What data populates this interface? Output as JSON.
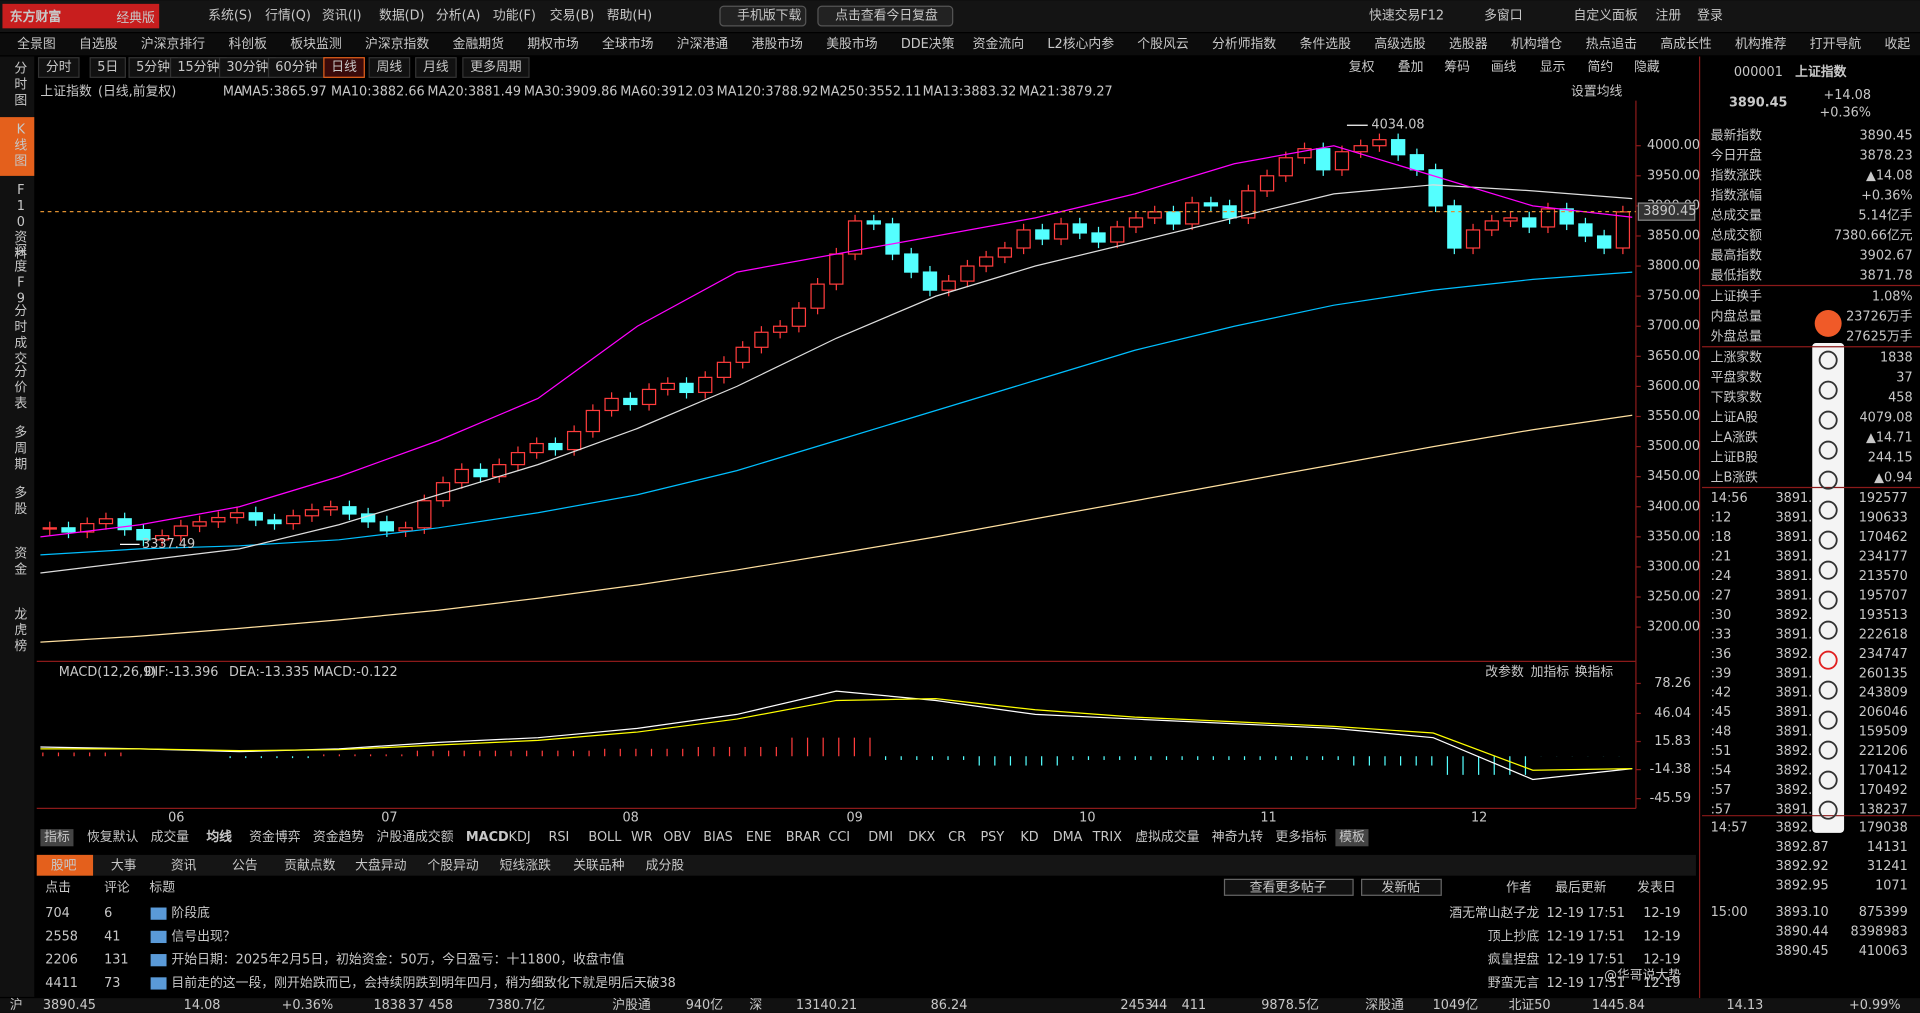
{
  "title_bar": {
    "logo": "东方财富",
    "edition": "经典版",
    "menu": [
      "系统(S)",
      "行情(Q)",
      "资讯(I)",
      "数据(D)",
      "分析(A)",
      "功能(F)",
      "交易(B)",
      "帮助(H)"
    ],
    "buttons": [
      "手机版下载",
      "点击查看今日复盘"
    ],
    "right": [
      "快速交易F12",
      "多窗口",
      "自定义面板",
      "注册",
      "登录"
    ]
  },
  "nav": [
    "全景图",
    "自选股",
    "沪深京排行",
    "科创板",
    "板块监测",
    "沪深京指数",
    "金融期货",
    "期权市场",
    "全球市场",
    "沪深港通",
    "港股市场",
    "美股市场",
    "DDE决策",
    "资金流向",
    "L2核心内参",
    "个股风云",
    "分析师指数",
    "条件选股",
    "高级选股",
    "选股器",
    "机构增仓",
    "热点追击",
    "高成长性",
    "机构推荐",
    "打开导航",
    "收起"
  ],
  "side_tabs": [
    "分时图",
    "K线图",
    "F10资料",
    "深度F9",
    "分时成交",
    "分价表",
    "多周期",
    "多股",
    "资金",
    "龙虎榜"
  ],
  "periods": [
    "分时",
    "5日",
    "5分钟",
    "15分钟",
    "30分钟",
    "60分钟",
    "日线",
    "周线",
    "月线",
    "更多周期"
  ],
  "chart_tools": [
    "复权",
    "叠加",
    "筹码",
    "画线",
    "显示",
    "简约",
    "隐藏"
  ],
  "legend": {
    "name": "上证指数",
    "mode": "(日线,前复权)",
    "ma": "MA",
    "items": [
      {
        "label": "MA5:3865.97",
        "color": "#ffffff"
      },
      {
        "label": "MA10:3882.66",
        "color": "#ffff00"
      },
      {
        "label": "MA20:3881.49",
        "color": "#ff00ff"
      },
      {
        "label": "MA30:3909.86",
        "color": "#00ff00"
      },
      {
        "label": "MA60:3912.03",
        "color": "#dddddd"
      },
      {
        "label": "MA120:3788.92",
        "color": "#00bfff"
      },
      {
        "label": "MA250:3552.11",
        "color": "#ffe0a0"
      },
      {
        "label": "MA13:3883.32",
        "color": "#ff4040"
      },
      {
        "label": "MA21:3879.27",
        "color": "#4080ff"
      }
    ],
    "settings": "设置均线"
  },
  "kline": {
    "type": "candlestick",
    "up_color": "#ff3c3c",
    "down_color": "#54ffff",
    "ylim": [
      3143,
      4075
    ],
    "yticks": [
      {
        "value": 3200,
        "label": "3200.00"
      },
      {
        "value": 3250,
        "label": "3250.00"
      },
      {
        "value": 3300,
        "label": "3300.00"
      },
      {
        "value": 3350,
        "label": "3350.00"
      },
      {
        "value": 3400,
        "label": "3400.00"
      },
      {
        "value": 3450,
        "label": "3450.00"
      },
      {
        "value": 3500,
        "label": "3500.00"
      },
      {
        "value": 3550,
        "label": "3550.00"
      },
      {
        "value": 3600,
        "label": "3600.00"
      },
      {
        "value": 3650,
        "label": "3650.00"
      },
      {
        "value": 3700,
        "label": "3700.00"
      },
      {
        "value": 3750,
        "label": "3750.00"
      },
      {
        "value": 3800,
        "label": "3800.00"
      },
      {
        "value": 3850,
        "label": "3850.00"
      },
      {
        "value": 3900,
        "label": "3900.00"
      },
      {
        "value": 3950,
        "label": "3950.00"
      },
      {
        "value": 4000,
        "label": "4000.00"
      }
    ],
    "closes": [
      3365,
      3358,
      3372,
      3380,
      3362,
      3345,
      3352,
      3368,
      3375,
      3382,
      3390,
      3378,
      3372,
      3385,
      3395,
      3400,
      3388,
      3375,
      3360,
      3365,
      3410,
      3440,
      3462,
      3450,
      3470,
      3490,
      3505,
      3495,
      3525,
      3560,
      3580,
      3570,
      3595,
      3605,
      3590,
      3615,
      3640,
      3665,
      3690,
      3700,
      3730,
      3770,
      3820,
      3875,
      3870,
      3820,
      3790,
      3760,
      3775,
      3800,
      3815,
      3830,
      3860,
      3845,
      3870,
      3855,
      3840,
      3865,
      3880,
      3890,
      3870,
      3905,
      3900,
      3880,
      3925,
      3950,
      3980,
      3995,
      3960,
      3990,
      4000,
      4010,
      3985,
      3960,
      3900,
      3830,
      3860,
      3875,
      3880,
      3865,
      3895,
      3870,
      3850,
      3830,
      3890
    ],
    "ma_lines": [
      {
        "name": "MA250",
        "color": "#ffe0a0",
        "values": [
          3175,
          3185,
          3198,
          3212,
          3228,
          3248,
          3270,
          3295,
          3322,
          3350,
          3380,
          3410,
          3440,
          3470,
          3500,
          3528,
          3552
        ]
      },
      {
        "name": "MA120",
        "color": "#00bfff",
        "values": [
          3320,
          3330,
          3335,
          3345,
          3365,
          3390,
          3420,
          3460,
          3510,
          3560,
          3610,
          3660,
          3700,
          3735,
          3760,
          3778,
          3790
        ]
      },
      {
        "name": "MA60",
        "color": "#dddddd",
        "values": [
          3290,
          3310,
          3330,
          3370,
          3420,
          3470,
          3530,
          3600,
          3680,
          3750,
          3800,
          3840,
          3880,
          3920,
          3935,
          3925,
          3912
        ]
      },
      {
        "name": "MA20",
        "color": "#ff00ff",
        "values": [
          3350,
          3370,
          3400,
          3450,
          3510,
          3580,
          3700,
          3790,
          3820,
          3850,
          3880,
          3920,
          3970,
          4000,
          3950,
          3900,
          3881
        ]
      }
    ],
    "last": {
      "value": 3890.45,
      "label": "3890.45"
    },
    "high": {
      "value": 4034.08,
      "label": "4034.08"
    },
    "low": {
      "value": 3337.49,
      "label": "3337.49"
    },
    "months": [
      "06",
      "07",
      "08",
      "09",
      "10",
      "11",
      "12"
    ]
  },
  "macd": {
    "header": "MACD(12,26,9)",
    "dif_label": "DIF:-13.396",
    "dea_label": "DEA:-13.335",
    "macd_label": "MACD:-0.122",
    "tools": [
      "改参数",
      "加指标",
      "换指标"
    ],
    "ylim": [
      -56,
      98
    ],
    "yticks": [
      -45.59,
      -14.38,
      15.83,
      46.04,
      78.26
    ],
    "dif": [
      10,
      8,
      5,
      8,
      15,
      20,
      30,
      45,
      70,
      60,
      45,
      40,
      35,
      30,
      20,
      -25,
      -13.396
    ],
    "dea": [
      8,
      8,
      6,
      7,
      12,
      17,
      26,
      40,
      60,
      62,
      50,
      42,
      37,
      32,
      25,
      -15,
      -13.335
    ],
    "hist": [
      4,
      0,
      -2,
      2,
      6,
      6,
      8,
      10,
      20,
      -4,
      -10,
      -4,
      -4,
      -4,
      -10,
      -20,
      -0.122
    ]
  },
  "indicator_tabs": [
    "指标",
    "恢复默认",
    "成交量",
    "均线",
    "资金博弈",
    "资金趋势",
    "沪股通成交额",
    "MACD",
    "KDJ",
    "RSI",
    "BOLL",
    "WR",
    "OBV",
    "BIAS",
    "ENE",
    "BRAR",
    "CCI",
    "DMI",
    "DKX",
    "CR",
    "PSY",
    "KD",
    "DMA",
    "TRIX",
    "虚拟成交量",
    "神奇九转",
    "更多指标",
    "模板"
  ],
  "info_tabs": [
    "股吧",
    "大事",
    "资讯",
    "公告",
    "贡献点数",
    "大盘异动",
    "个股异动",
    "短线涨跌",
    "关联品种",
    "成分股"
  ],
  "posts": {
    "header": {
      "click": "点击",
      "comment": "评论",
      "title": "标题",
      "more": "查看更多帖子",
      "new": "发新帖",
      "author": "作者",
      "updated": "最后更新",
      "date": "发表日"
    },
    "rows": [
      {
        "click": "704",
        "comment": "6",
        "title": "阶段底",
        "author": "酒无常山赵子龙",
        "updated": "12-19 17:51",
        "date": "12-19"
      },
      {
        "click": "2558",
        "comment": "41",
        "title": "信号出现？",
        "author": "顶上抄底",
        "updated": "12-19 17:51",
        "date": "12-19"
      },
      {
        "click": "2206",
        "comment": "131",
        "title": "开始日期：2025年2月5日，初始资金：50万，今日盈亏：十11800，收盘市值",
        "author": "疯皇捏盘",
        "updated": "12-19 17:51",
        "date": "12-19"
      },
      {
        "click": "4411",
        "comment": "73",
        "title": "目前走的这一段，刚开始跌而已，会持续阴跌到明年四月，稍为细致化下就是明后天破38",
        "author": "野蛮无言",
        "updated": "12-19 17:51",
        "date": "12-19"
      }
    ]
  },
  "quote": {
    "code": "000001",
    "name": "上证指数",
    "price": "3890.45",
    "change": "+14.08",
    "pct": "+0.36%",
    "rows": [
      [
        "最新指数",
        "3890.45"
      ],
      [
        "今日开盘",
        "3878.23"
      ],
      [
        "指数涨跌",
        "▲14.08"
      ],
      [
        "指数涨幅",
        "+0.36%"
      ],
      [
        "总成交量",
        "5.14亿手"
      ],
      [
        "总成交额",
        "7380.66亿元"
      ],
      [
        "最高指数",
        "3902.67"
      ],
      [
        "最低指数",
        "3871.78"
      ],
      [
        "上证换手",
        "1.08%"
      ],
      [
        "内盘总量",
        "23726万手"
      ],
      [
        "外盘总量",
        "27625万手"
      ],
      [
        "上涨家数",
        "1838"
      ],
      [
        "平盘家数",
        "37"
      ],
      [
        "下跌家数",
        "458"
      ],
      [
        "上证A股",
        "4079.08"
      ],
      [
        "上A涨跌",
        "▲14.71"
      ],
      [
        "上证B股",
        "244.15"
      ],
      [
        "上B涨跌",
        "▲0.94"
      ]
    ],
    "ticks": [
      [
        "14:56",
        "3891.",
        "192577"
      ],
      [
        ":12",
        "3891.",
        "190633"
      ],
      [
        ":18",
        "3891.",
        "170462"
      ],
      [
        ":21",
        "3891.",
        "234177"
      ],
      [
        ":24",
        "3891.",
        "213570"
      ],
      [
        ":27",
        "3891.",
        "195707"
      ],
      [
        ":30",
        "3892.",
        "193513"
      ],
      [
        ":33",
        "3891.",
        "222618"
      ],
      [
        ":36",
        "3892.",
        "234747"
      ],
      [
        ":39",
        "3891.",
        "260135"
      ],
      [
        ":42",
        "3891.",
        "243809"
      ],
      [
        ":45",
        "3891.",
        "206046"
      ],
      [
        ":48",
        "3891.",
        "159509"
      ],
      [
        ":51",
        "3892.",
        "221206"
      ],
      [
        ":54",
        "3892.",
        "170412"
      ],
      [
        ":57",
        "3892.",
        "170492"
      ],
      [
        ":57",
        "3891.",
        "138237"
      ]
    ],
    "ticks2": [
      [
        "14:57",
        "3892.",
        "179038"
      ],
      [
        "",
        "3892.87",
        "14131"
      ],
      [
        "",
        "3892.92",
        "31241"
      ],
      [
        "",
        "3892.95",
        "1071"
      ],
      [
        "15:00",
        "3893.10",
        "875399"
      ],
      [
        "",
        "3890.44",
        "8398983"
      ],
      [
        "",
        "3890.45",
        "410063"
      ]
    ]
  },
  "status": [
    "沪",
    "3890.45",
    "14.08",
    "+0.36%",
    "1838",
    "37",
    "458",
    "7380.7亿",
    "沪股通",
    "940亿",
    "深",
    "13140.21",
    "86.24",
    "2453",
    "44",
    "411",
    "9878.5亿",
    "深股通",
    "1049亿",
    "北证50",
    "1445.84",
    "14.13",
    "+0.99%"
  ],
  "watermark": "@华哥说大势"
}
